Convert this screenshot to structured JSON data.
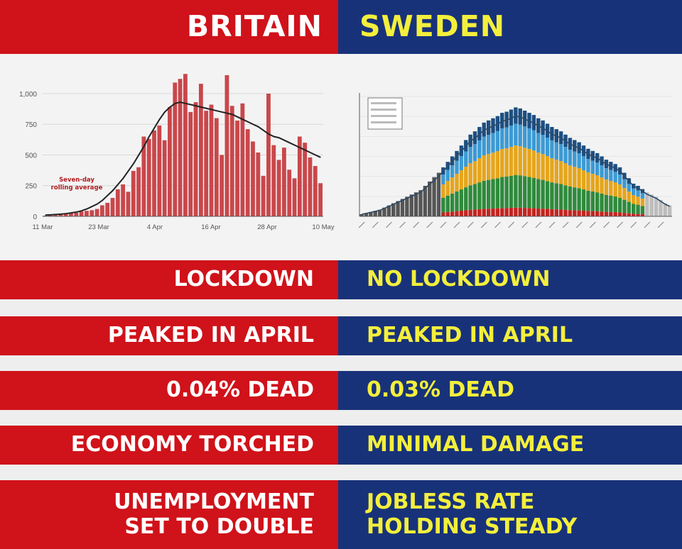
{
  "colors": {
    "britain_bg": "#d0121a",
    "sweden_bg": "#18327a",
    "britain_text": "#ffffff",
    "sweden_text": "#f3ef3c",
    "page_bg": "#eeeeee"
  },
  "header": {
    "britain": "BRITAIN",
    "sweden": "SWEDEN"
  },
  "rows": [
    {
      "britain": [
        "LOCKDOWN"
      ],
      "sweden": [
        "NO LOCKDOWN"
      ]
    },
    {
      "britain": [
        "PEAKED IN APRIL"
      ],
      "sweden": [
        "PEAKED IN APRIL"
      ]
    },
    {
      "britain": [
        "0.04% DEAD"
      ],
      "sweden": [
        "0.03% DEAD"
      ]
    },
    {
      "britain": [
        "ECONOMY TORCHED"
      ],
      "sweden": [
        "MINIMAL DAMAGE"
      ]
    },
    {
      "britain": [
        "UNEMPLOYMENT",
        "SET TO DOUBLE"
      ],
      "sweden": [
        "JOBLESS RATE",
        "HOLDING STEADY"
      ]
    }
  ],
  "chart_data": [
    {
      "type": "bar",
      "title": "",
      "xlabel": "",
      "ylabel": "",
      "x_ticks": [
        "11 Mar",
        "23 Mar",
        "4 Apr",
        "16 Apr",
        "28 Apr",
        "10 May"
      ],
      "y_ticks": [
        "0",
        "250",
        "500",
        "750",
        "1,000"
      ],
      "ylim": [
        0,
        1150
      ],
      "annotation": [
        "Seven-day",
        "rolling average"
      ],
      "grid": true,
      "series": [
        {
          "values": [
            5,
            8,
            10,
            15,
            18,
            25,
            30,
            40,
            45,
            50,
            60,
            90,
            110,
            150,
            220,
            260,
            200,
            370,
            400,
            650,
            630,
            700,
            740,
            620,
            890,
            1090,
            1120,
            1160,
            850,
            930,
            1080,
            860,
            910,
            800,
            500,
            1150,
            900,
            780,
            920,
            710,
            610,
            520,
            330,
            1000,
            580,
            460,
            560,
            380,
            310,
            650,
            600,
            480,
            410,
            270
          ],
          "rolling_average": [
            10,
            12,
            15,
            18,
            22,
            28,
            35,
            45,
            60,
            80,
            100,
            130,
            170,
            210,
            260,
            310,
            370,
            430,
            500,
            570,
            650,
            720,
            790,
            850,
            890,
            920,
            930,
            920,
            910,
            900,
            890,
            880,
            870,
            860,
            850,
            840,
            830,
            810,
            790,
            770,
            750,
            730,
            700,
            670,
            650,
            640,
            620,
            600,
            580,
            560,
            540,
            520,
            500,
            480
          ]
        }
      ]
    },
    {
      "type": "bar",
      "title": "",
      "xlabel": "",
      "ylabel": "",
      "grid": false,
      "series": [
        {
          "values": [
            2,
            3,
            4,
            5,
            6,
            8,
            10,
            12,
            14,
            16,
            18,
            20,
            22,
            24,
            28,
            32,
            36,
            40,
            45,
            50,
            55,
            60,
            65,
            70,
            75,
            78,
            82,
            86,
            88,
            90,
            92,
            95,
            96,
            98,
            100,
            99,
            97,
            95,
            93,
            90,
            88,
            85,
            82,
            80,
            78,
            75,
            72,
            70,
            68,
            65,
            62,
            60,
            58,
            55,
            52,
            50,
            48,
            45,
            40,
            35,
            30,
            28,
            25,
            22,
            20,
            18,
            15,
            12,
            10
          ]
        }
      ]
    }
  ]
}
